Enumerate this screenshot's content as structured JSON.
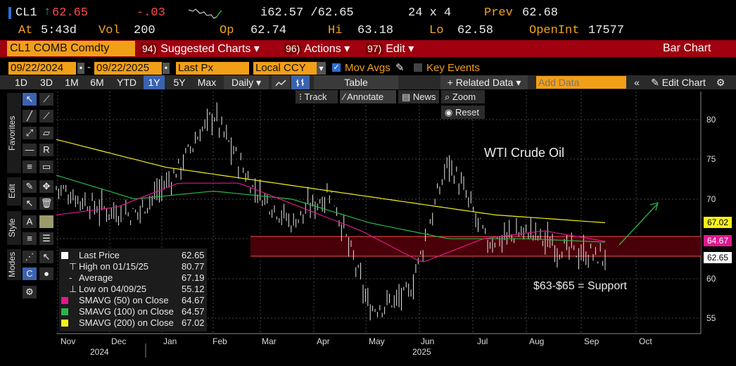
{
  "ticker": {
    "symbol": "CL1",
    "arrow": "↑",
    "last": "62.65",
    "change": "-.03",
    "hilo": "i62.57 /62.65",
    "size": "24 x 4",
    "prev_label": "Prev",
    "prev": "62.68",
    "at_label": "At",
    "at_value": "5:43d",
    "vol_label": "Vol",
    "vol": "200",
    "op_label": "Op",
    "op": "62.74",
    "hi_label": "Hi",
    "hi": "63.18",
    "lo_label": "Lo",
    "lo": "62.58",
    "oi_label": "OpenInt",
    "oi": "17577"
  },
  "cmdbar": {
    "security": "CL1 COMB Comdty",
    "suggested_num": "94)",
    "suggested": "Suggested Charts ▾",
    "actions_num": "96)",
    "actions": "Actions ▾",
    "edit_num": "97)",
    "edit": "Edit ▾",
    "bar_chart": "Bar Chart"
  },
  "daterow": {
    "start": "09/22/2024",
    "end": "09/22/2025",
    "field": "Last Px",
    "currency": "Local CCY",
    "mov_avgs": "Mov Avgs",
    "key_events": "Key Events"
  },
  "range": {
    "buttons": [
      "1D",
      "3D",
      "1M",
      "6M",
      "YTD",
      "1Y",
      "5Y",
      "Max"
    ],
    "selected": "1Y",
    "period": "Daily ▾",
    "table": "Table",
    "related": "+ Related Data ▾",
    "add_placeholder": "Add Data",
    "edit_chart": "Edit Chart"
  },
  "chart_toolbar": {
    "track": "Track",
    "annotate": "Annotate",
    "news": "News",
    "zoom": "Zoom",
    "reset": "Reset"
  },
  "side_tabs": {
    "favorites": "Favorites",
    "edit": "Edit",
    "style": "Style",
    "modes": "Modes"
  },
  "annotations": {
    "title": "WTI Crude Oil",
    "support": "$63-$65 = Support"
  },
  "legend": [
    {
      "label": "Last Price",
      "value": "62.65",
      "color": "#ffffff"
    },
    {
      "label": "High on 01/15/25",
      "value": "80.77",
      "color": ""
    },
    {
      "label": "Average",
      "value": "67.19",
      "color": ""
    },
    {
      "label": "Low on 04/09/25",
      "value": "55.12",
      "color": ""
    },
    {
      "label": "SMAVG (50)  on Close",
      "value": "64.67",
      "color": "#e0188e"
    },
    {
      "label": "SMAVG (100)  on Close",
      "value": "64.57",
      "color": "#2bb34a"
    },
    {
      "label": "SMAVG (200)  on Close",
      "value": "67.02",
      "color": "#f7f01a"
    }
  ],
  "y_axis": {
    "ticks": [
      "80",
      "75",
      "70",
      "65",
      "60",
      "55"
    ],
    "tags": {
      "sma200": "67.02",
      "sma50": "64.67",
      "last": "62.65"
    }
  },
  "x_axis": {
    "months": [
      "Nov",
      "Dec",
      "Jan",
      "Feb",
      "Mar",
      "Apr",
      "May",
      "Jun",
      "Jul",
      "Aug",
      "Sep",
      "Oct"
    ],
    "years": [
      "2024",
      "2025"
    ]
  },
  "colors": {
    "amber": "#f4a21b",
    "red_bar": "#a0000f",
    "sma50": "#e0188e",
    "sma100": "#2bb34a",
    "sma200": "#f7f01a",
    "support_band": "#4a0008",
    "arrow": "#2bb34a"
  },
  "chart_data": {
    "type": "line",
    "title": "WTI Crude Oil",
    "ylim": [
      53,
      83
    ],
    "series": [
      {
        "name": "Last Price",
        "x": [
          "Oct",
          "Nov",
          "Dec",
          "Jan",
          "Jan",
          "Feb",
          "Mar",
          "Apr",
          "Apr",
          "May",
          "Jun",
          "Jun",
          "Jul",
          "Aug",
          "Sep"
        ],
        "values": [
          71.5,
          69,
          68,
          73,
          80.8,
          71.5,
          67,
          71,
          56,
          58,
          75,
          64.5,
          66,
          63.5,
          62.65
        ]
      },
      {
        "name": "SMAVG (50)",
        "values": [
          68,
          69,
          72,
          72,
          69,
          66,
          62,
          65,
          66,
          64.67
        ]
      },
      {
        "name": "SMAVG (100)",
        "values": [
          73,
          70,
          71,
          70,
          67,
          65,
          65,
          64.57
        ]
      },
      {
        "name": "SMAVG (200)",
        "values": [
          77.5,
          74,
          72,
          70,
          68,
          67.02
        ]
      }
    ]
  }
}
